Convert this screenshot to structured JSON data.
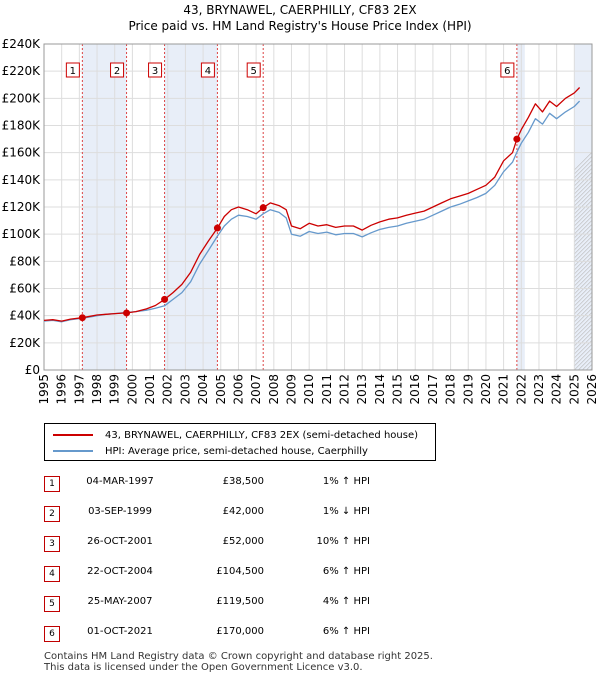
{
  "chart_data": {
    "type": "line",
    "title": "43, BRYNAWEL, CAERPHILLY, CF83 2EX",
    "subtitle": "Price paid vs. HM Land Registry's House Price Index (HPI)",
    "xlabel": "",
    "ylabel": "",
    "xlim": [
      1995,
      2026
    ],
    "ylim": [
      0,
      240000
    ],
    "x_ticks": [
      1995,
      1996,
      1997,
      1998,
      1999,
      2000,
      2001,
      2002,
      2003,
      2004,
      2005,
      2006,
      2007,
      2008,
      2009,
      2010,
      2011,
      2012,
      2013,
      2014,
      2015,
      2016,
      2017,
      2018,
      2019,
      2020,
      2021,
      2022,
      2023,
      2024,
      2025,
      2026
    ],
    "x_tick_labels": [
      "1995",
      "1996",
      "1997",
      "1998",
      "1999",
      "2000",
      "2001",
      "2002",
      "2003",
      "2004",
      "2005",
      "2006",
      "2007",
      "2008",
      "2009",
      "2010",
      "2011",
      "2012",
      "2013",
      "2014",
      "2015",
      "2016",
      "2017",
      "2018",
      "2019",
      "2020",
      "2021",
      "2022",
      "2023",
      "2024",
      "2025",
      "2026"
    ],
    "y_ticks": [
      0,
      20000,
      40000,
      60000,
      80000,
      100000,
      120000,
      140000,
      160000,
      180000,
      200000,
      220000,
      240000
    ],
    "y_tick_labels": [
      "£0",
      "£20K",
      "£40K",
      "£60K",
      "£80K",
      "£100K",
      "£120K",
      "£140K",
      "£160K",
      "£180K",
      "£200K",
      "£220K",
      "£240K"
    ],
    "series": [
      {
        "name": "43, BRYNAWEL, CAERPHILLY, CF83 2EX (semi-detached house)",
        "color": "#cc0000",
        "x": [
          1995.0,
          1995.5,
          1996.0,
          1996.5,
          1997.17,
          1997.6,
          1998.0,
          1998.5,
          1999.0,
          1999.67,
          2000.2,
          2000.8,
          2001.3,
          2001.82,
          2002.3,
          2002.8,
          2003.3,
          2003.8,
          2004.3,
          2004.81,
          2005.2,
          2005.6,
          2006.0,
          2006.5,
          2007.0,
          2007.4,
          2007.8,
          2008.3,
          2008.7,
          2009.0,
          2009.5,
          2010.0,
          2010.5,
          2011.0,
          2011.5,
          2012.0,
          2012.5,
          2013.0,
          2013.5,
          2014.0,
          2014.5,
          2015.0,
          2015.5,
          2016.0,
          2016.5,
          2017.0,
          2017.5,
          2018.0,
          2018.5,
          2019.0,
          2019.5,
          2020.0,
          2020.5,
          2021.0,
          2021.5,
          2021.75,
          2022.0,
          2022.4,
          2022.8,
          2023.2,
          2023.6,
          2024.0,
          2024.5,
          2025.0,
          2025.3
        ],
        "values": [
          36500,
          37000,
          36000,
          37500,
          38500,
          39500,
          40500,
          41000,
          41500,
          42000,
          43000,
          45000,
          47500,
          52000,
          57000,
          63000,
          72000,
          85000,
          95000,
          104500,
          113000,
          118000,
          120000,
          118000,
          115000,
          119500,
          123000,
          121000,
          118000,
          106000,
          104000,
          108000,
          106000,
          107000,
          105000,
          106000,
          106000,
          103000,
          106500,
          109000,
          111000,
          112000,
          114000,
          115500,
          117000,
          120000,
          123000,
          126000,
          128000,
          130000,
          133000,
          136000,
          142000,
          154000,
          160000,
          170000,
          177000,
          186000,
          196000,
          190000,
          198000,
          194000,
          200000,
          204000,
          208000
        ]
      },
      {
        "name": "HPI: Average price, semi-detached house, Caerphilly",
        "color": "#6699cc",
        "x": [
          1995.0,
          1995.5,
          1996.0,
          1996.5,
          1997.17,
          1997.6,
          1998.0,
          1998.5,
          1999.0,
          1999.67,
          2000.2,
          2000.8,
          2001.3,
          2001.82,
          2002.3,
          2002.8,
          2003.3,
          2003.8,
          2004.3,
          2004.81,
          2005.2,
          2005.6,
          2006.0,
          2006.5,
          2007.0,
          2007.4,
          2007.8,
          2008.3,
          2008.7,
          2009.0,
          2009.5,
          2010.0,
          2010.5,
          2011.0,
          2011.5,
          2012.0,
          2012.5,
          2013.0,
          2013.5,
          2014.0,
          2014.5,
          2015.0,
          2015.5,
          2016.0,
          2016.5,
          2017.0,
          2017.5,
          2018.0,
          2018.5,
          2019.0,
          2019.5,
          2020.0,
          2020.5,
          2021.0,
          2021.5,
          2021.75,
          2022.0,
          2022.4,
          2022.8,
          2023.2,
          2023.6,
          2024.0,
          2024.5,
          2025.0,
          2025.3
        ],
        "values": [
          36000,
          36500,
          35500,
          37000,
          38100,
          39000,
          40000,
          41000,
          41500,
          42400,
          43000,
          44000,
          45500,
          47300,
          52000,
          57000,
          65000,
          78000,
          88000,
          98600,
          106000,
          111000,
          114000,
          113000,
          111000,
          115000,
          118000,
          116000,
          112000,
          100000,
          98500,
          102000,
          100500,
          101500,
          99500,
          100500,
          100500,
          98000,
          101000,
          103500,
          105000,
          106000,
          108000,
          109500,
          111000,
          114000,
          117000,
          120000,
          122000,
          124500,
          127000,
          130000,
          136000,
          146000,
          153000,
          160400,
          167000,
          175000,
          185000,
          181000,
          189000,
          185000,
          190000,
          194000,
          198000
        ]
      }
    ],
    "sales": [
      {
        "label": "1",
        "x": 1997.17,
        "value": 38500
      },
      {
        "label": "2",
        "x": 1999.67,
        "value": 42000
      },
      {
        "label": "3",
        "x": 2001.82,
        "value": 52000
      },
      {
        "label": "4",
        "x": 2004.81,
        "value": 104500
      },
      {
        "label": "5",
        "x": 2007.4,
        "value": 119500
      },
      {
        "label": "6",
        "x": 2021.75,
        "value": 170000
      }
    ],
    "shaded_ranges": [
      {
        "start": 1997.17,
        "end": 1999.67
      },
      {
        "start": 2001.82,
        "end": 2004.81
      },
      {
        "start": 2007.4,
        "end": 2007.4
      },
      {
        "start": 2021.75,
        "end": 2022.2
      },
      {
        "start": 2025.0,
        "end": 2026.0
      }
    ],
    "grid": true,
    "legend_position": "below"
  },
  "legend": {
    "series1_label": "43, BRYNAWEL, CAERPHILLY, CF83 2EX (semi-detached house)",
    "series2_label": "HPI: Average price, semi-detached house, Caerphilly",
    "series1_color": "#cc0000",
    "series2_color": "#6699cc"
  },
  "sales_table": [
    {
      "num": "1",
      "date": "04-MAR-1997",
      "price": "£38,500",
      "hpi": "1% ↑ HPI"
    },
    {
      "num": "2",
      "date": "03-SEP-1999",
      "price": "£42,000",
      "hpi": "1% ↓ HPI"
    },
    {
      "num": "3",
      "date": "26-OCT-2001",
      "price": "£52,000",
      "hpi": "10% ↑ HPI"
    },
    {
      "num": "4",
      "date": "22-OCT-2004",
      "price": "£104,500",
      "hpi": "6% ↑ HPI"
    },
    {
      "num": "5",
      "date": "25-MAY-2007",
      "price": "£119,500",
      "hpi": "4% ↑ HPI"
    },
    {
      "num": "6",
      "date": "01-OCT-2021",
      "price": "£170,000",
      "hpi": "6% ↑ HPI"
    }
  ],
  "footer": {
    "line1": "Contains HM Land Registry data © Crown copyright and database right 2025.",
    "line2": "This data is licensed under the Open Government Licence v3.0."
  }
}
